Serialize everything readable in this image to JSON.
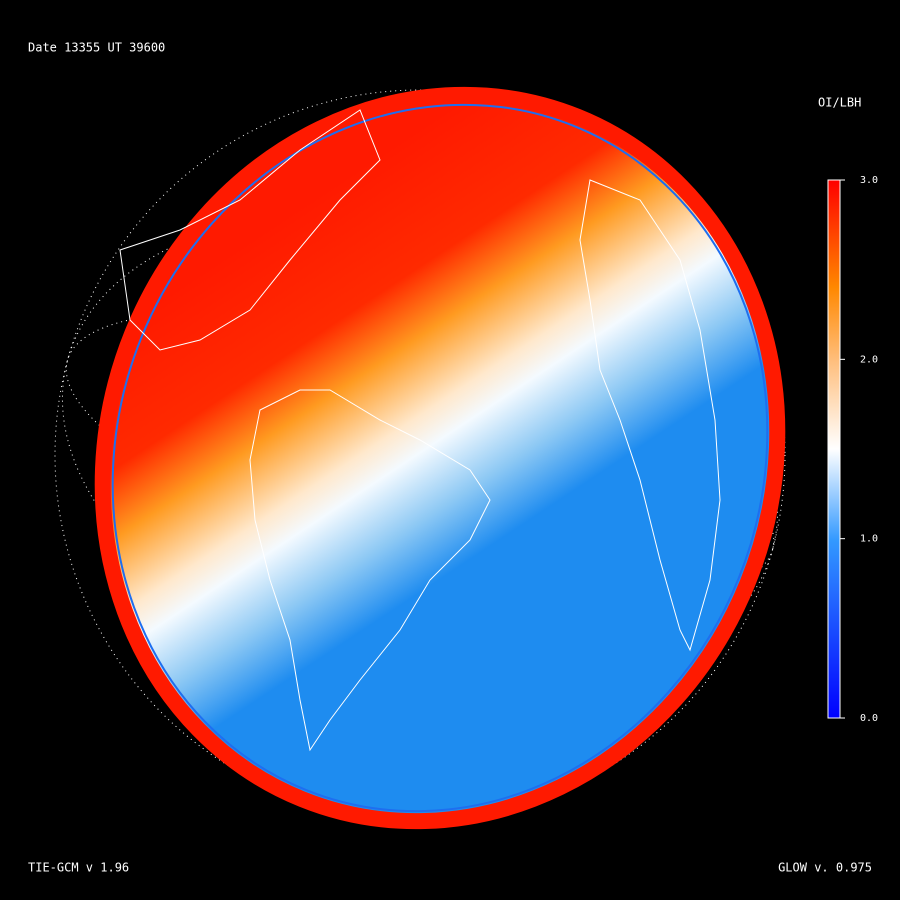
{
  "header": {
    "date_label": "Date 13355  UT 39600"
  },
  "colorbar": {
    "title": "OI/LBH",
    "lim": [
      0,
      3
    ],
    "ticks": [
      {
        "value": 3,
        "label": "3.0"
      },
      {
        "value": 2,
        "label": "2.0"
      },
      {
        "value": 1,
        "label": "1.0"
      },
      {
        "value": 0,
        "label": "0.0"
      }
    ]
  },
  "footer": {
    "left": "TIE-GCM v 1.96",
    "right": "GLOW v. 0.975"
  }
}
